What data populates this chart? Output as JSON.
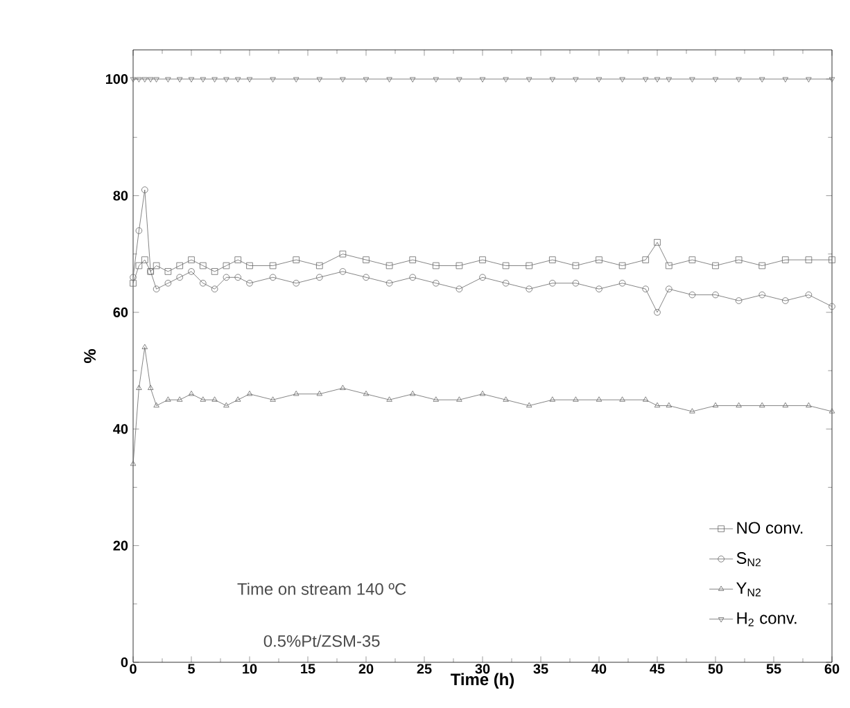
{
  "chart_data": {
    "type": "line",
    "xlabel": "Time (h)",
    "ylabel": "%",
    "annotations": [
      "Time on stream 140 ºC",
      "0.5%Pt/ZSM-35"
    ],
    "x": [
      0,
      0.5,
      1,
      1.5,
      2,
      3,
      4,
      5,
      6,
      7,
      8,
      9,
      10,
      12,
      14,
      16,
      18,
      20,
      22,
      24,
      26,
      28,
      30,
      32,
      34,
      36,
      38,
      40,
      42,
      44,
      45,
      46,
      48,
      50,
      52,
      54,
      56,
      58,
      60
    ],
    "xlim": [
      0,
      60
    ],
    "xticks": [
      0,
      5,
      10,
      15,
      20,
      25,
      30,
      35,
      40,
      45,
      50,
      55,
      60
    ],
    "ylim": [
      0,
      105
    ],
    "yticks": [
      0,
      20,
      40,
      60,
      80,
      100
    ],
    "legend": "bottom right",
    "line_style": "solid",
    "series": [
      {
        "name": "NO conv.",
        "color": "#666666",
        "marker": "square",
        "values": [
          65,
          68,
          69,
          67,
          68,
          67,
          68,
          69,
          68,
          67,
          68,
          69,
          68,
          68,
          69,
          68,
          70,
          69,
          68,
          69,
          68,
          68,
          69,
          68,
          68,
          69,
          68,
          69,
          68,
          69,
          72,
          68,
          69,
          68,
          69,
          68,
          69,
          69,
          69
        ]
      },
      {
        "name": "S$_{N2}$",
        "color": "#666666",
        "marker": "circle",
        "values": [
          66,
          74,
          81,
          67,
          64,
          65,
          66,
          67,
          65,
          64,
          66,
          66,
          65,
          66,
          65,
          66,
          67,
          66,
          65,
          66,
          65,
          64,
          66,
          65,
          64,
          65,
          65,
          64,
          65,
          64,
          60,
          64,
          63,
          63,
          62,
          63,
          62,
          63,
          61
        ]
      },
      {
        "name": "Y$_{N2}$",
        "color": "#666666",
        "marker": "triangle",
        "values": [
          34,
          47,
          54,
          47,
          44,
          45,
          45,
          46,
          45,
          45,
          44,
          45,
          46,
          45,
          46,
          46,
          47,
          46,
          45,
          46,
          45,
          45,
          46,
          45,
          44,
          45,
          45,
          45,
          45,
          45,
          44,
          44,
          43,
          44,
          44,
          44,
          44,
          44,
          43
        ]
      },
      {
        "name": "H$_{2}$ conv.",
        "color": "#666666",
        "marker": "triangle down",
        "values": [
          100,
          100,
          100,
          100,
          100,
          100,
          100,
          100,
          100,
          100,
          100,
          100,
          100,
          100,
          100,
          100,
          100,
          100,
          100,
          100,
          100,
          100,
          100,
          100,
          100,
          100,
          100,
          100,
          100,
          100,
          100,
          100,
          100,
          100,
          100,
          100,
          100,
          100,
          100
        ]
      }
    ]
  }
}
